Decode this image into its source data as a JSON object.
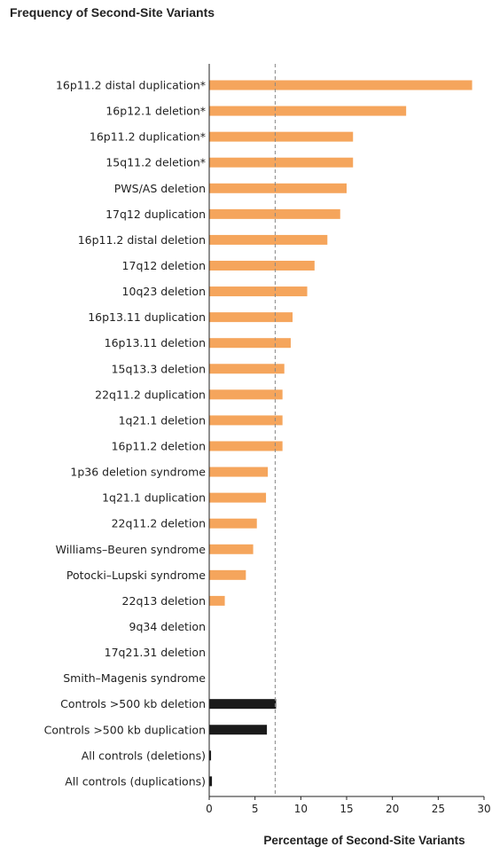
{
  "chart_data": {
    "type": "bar",
    "orientation": "horizontal",
    "title": "Frequency of Second-Site Variants",
    "xlabel": "Percentage of Second-Site Variants",
    "ylabel": "",
    "xlim": [
      0,
      30
    ],
    "xticks": [
      0,
      5,
      10,
      15,
      20,
      25,
      30
    ],
    "reference_line": {
      "x": 7.2,
      "style": "dashed"
    },
    "grid": false,
    "colors": {
      "variants": "#f5a55c",
      "controls": "#1a1a1a"
    },
    "categories": [
      "16p11.2 distal duplication*",
      "16p12.1 deletion*",
      "16p11.2 duplication*",
      "15q11.2 deletion*",
      "PWS/AS deletion",
      "17q12 duplication",
      "16p11.2 distal deletion",
      "17q12 deletion",
      "10q23 deletion",
      "16p13.11 duplication",
      "16p13.11 deletion",
      "15q13.3 deletion",
      "22q11.2 duplication",
      "1q21.1 deletion",
      "16p11.2 deletion",
      "1p36 deletion syndrome",
      "1q21.1 duplication",
      "22q11.2 deletion",
      "Williams–Beuren syndrome",
      "Potocki–Lupski syndrome",
      "22q13 deletion",
      "9q34 deletion",
      "17q21.31 deletion",
      "Smith–Magenis syndrome",
      "Controls >500 kb deletion",
      "Controls >500 kb duplication",
      "All controls (deletions)",
      "All controls (duplications)"
    ],
    "values": [
      28.7,
      21.5,
      15.7,
      15.7,
      15.0,
      14.3,
      12.9,
      11.5,
      10.7,
      9.1,
      8.9,
      8.2,
      8.0,
      8.0,
      8.0,
      6.4,
      6.2,
      5.2,
      4.8,
      4.0,
      1.7,
      0,
      0,
      0,
      7.3,
      6.3,
      0.2,
      0.3
    ],
    "bar_group": [
      "variant",
      "variant",
      "variant",
      "variant",
      "variant",
      "variant",
      "variant",
      "variant",
      "variant",
      "variant",
      "variant",
      "variant",
      "variant",
      "variant",
      "variant",
      "variant",
      "variant",
      "variant",
      "variant",
      "variant",
      "variant",
      "variant",
      "variant",
      "variant",
      "control",
      "control",
      "control",
      "control"
    ]
  }
}
